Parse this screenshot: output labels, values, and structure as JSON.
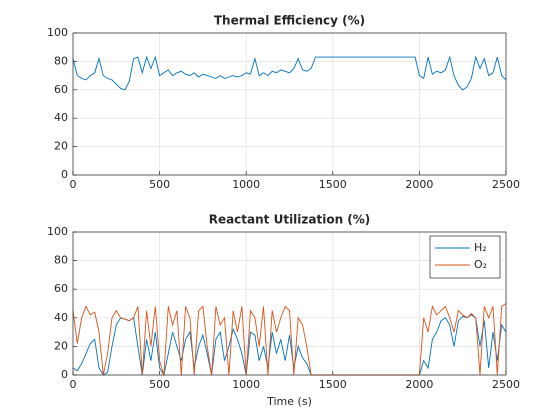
{
  "chart_data": [
    {
      "type": "line",
      "title": "Thermal Efficiency (%)",
      "x": [
        0,
        25,
        50,
        75,
        100,
        125,
        150,
        175,
        200,
        225,
        250,
        275,
        300,
        325,
        350,
        375,
        400,
        425,
        450,
        475,
        500,
        525,
        550,
        575,
        600,
        625,
        650,
        675,
        700,
        725,
        750,
        775,
        800,
        825,
        850,
        875,
        900,
        925,
        950,
        975,
        1000,
        1025,
        1050,
        1075,
        1100,
        1125,
        1150,
        1175,
        1200,
        1225,
        1250,
        1275,
        1300,
        1325,
        1350,
        1375,
        1400,
        1425,
        1450,
        1475,
        1500,
        1525,
        1550,
        1575,
        1600,
        1625,
        1650,
        1675,
        1700,
        1725,
        1750,
        1775,
        1800,
        1825,
        1850,
        1875,
        1900,
        1925,
        1950,
        1975,
        2000,
        2025,
        2050,
        2075,
        2100,
        2125,
        2150,
        2175,
        2200,
        2225,
        2250,
        2275,
        2300,
        2325,
        2350,
        2375,
        2400,
        2425,
        2450,
        2475,
        2500
      ],
      "series": [
        {
          "color": "#0072bd",
          "values": [
            82,
            70,
            68,
            67,
            70,
            72,
            82,
            70,
            68,
            67,
            64,
            61,
            60,
            66,
            82,
            83,
            72,
            83,
            75,
            83,
            70,
            72,
            74,
            70,
            72,
            73,
            71,
            70,
            72,
            69,
            71,
            70,
            69,
            68,
            70,
            68,
            69,
            70,
            69,
            70,
            72,
            71,
            82,
            70,
            72,
            70,
            73,
            72,
            74,
            73,
            72,
            75,
            82,
            74,
            73,
            75,
            83,
            83,
            83,
            83,
            83,
            83,
            83,
            83,
            83,
            83,
            83,
            83,
            83,
            83,
            83,
            83,
            83,
            83,
            83,
            83,
            83,
            83,
            83,
            83,
            70,
            68,
            83,
            71,
            73,
            72,
            74,
            83,
            70,
            63,
            60,
            62,
            68,
            83,
            75,
            82,
            70,
            72,
            83,
            70,
            67
          ]
        }
      ],
      "xlim": [
        0,
        2500
      ],
      "xticks": [
        0,
        500,
        1000,
        1500,
        2000,
        2500
      ],
      "ylim": [
        0,
        100
      ],
      "yticks": [
        0,
        20,
        40,
        60,
        80,
        100
      ],
      "grid": true
    },
    {
      "type": "line",
      "title": "Reactant Utilization (%)",
      "xlabel": "Time (s)",
      "x": [
        0,
        25,
        50,
        75,
        100,
        125,
        150,
        175,
        200,
        225,
        250,
        275,
        300,
        325,
        350,
        375,
        400,
        425,
        450,
        475,
        500,
        525,
        550,
        575,
        600,
        625,
        650,
        675,
        700,
        725,
        750,
        775,
        800,
        825,
        850,
        875,
        900,
        925,
        950,
        975,
        1000,
        1025,
        1050,
        1075,
        1100,
        1125,
        1150,
        1175,
        1200,
        1225,
        1250,
        1275,
        1300,
        1325,
        1350,
        1375,
        1400,
        1425,
        1450,
        1475,
        1500,
        1525,
        1550,
        1575,
        1600,
        1625,
        1650,
        1675,
        1700,
        1725,
        1750,
        1775,
        1800,
        1825,
        1850,
        1875,
        1900,
        1925,
        1950,
        1975,
        2000,
        2025,
        2050,
        2075,
        2100,
        2125,
        2150,
        2175,
        2200,
        2225,
        2250,
        2275,
        2300,
        2325,
        2350,
        2375,
        2400,
        2425,
        2450,
        2475,
        2500
      ],
      "series": [
        {
          "name": "H₂",
          "color": "#0072bd",
          "values": [
            5,
            3,
            8,
            15,
            22,
            25,
            5,
            0,
            2,
            20,
            35,
            40,
            39,
            38,
            40,
            20,
            0,
            25,
            10,
            30,
            5,
            0,
            15,
            30,
            20,
            10,
            25,
            30,
            5,
            20,
            28,
            15,
            0,
            25,
            30,
            10,
            20,
            32,
            25,
            15,
            0,
            30,
            28,
            10,
            20,
            5,
            30,
            15,
            25,
            10,
            28,
            5,
            20,
            12,
            8,
            0,
            0,
            0,
            0,
            0,
            0,
            0,
            0,
            0,
            0,
            0,
            0,
            0,
            0,
            0,
            0,
            0,
            0,
            0,
            0,
            0,
            0,
            0,
            0,
            0,
            0,
            10,
            5,
            25,
            30,
            38,
            40,
            35,
            20,
            38,
            41,
            40,
            42,
            40,
            20,
            38,
            5,
            30,
            10,
            35,
            30
          ]
        },
        {
          "name": "O₂",
          "color": "#d95319",
          "values": [
            45,
            22,
            40,
            48,
            42,
            44,
            30,
            0,
            15,
            40,
            45,
            40,
            39,
            38,
            40,
            48,
            0,
            45,
            20,
            48,
            10,
            0,
            48,
            35,
            45,
            0,
            48,
            40,
            0,
            45,
            48,
            20,
            0,
            48,
            35,
            40,
            0,
            45,
            30,
            48,
            0,
            45,
            40,
            20,
            48,
            0,
            45,
            30,
            40,
            48,
            45,
            0,
            40,
            35,
            20,
            0,
            0,
            0,
            0,
            0,
            0,
            0,
            0,
            0,
            0,
            0,
            0,
            0,
            0,
            0,
            0,
            0,
            0,
            0,
            0,
            0,
            0,
            0,
            0,
            0,
            0,
            40,
            30,
            48,
            42,
            45,
            48,
            40,
            30,
            45,
            42,
            40,
            43,
            40,
            0,
            48,
            40,
            48,
            0,
            48,
            50
          ]
        }
      ],
      "xlim": [
        0,
        2500
      ],
      "xticks": [
        0,
        500,
        1000,
        1500,
        2000,
        2500
      ],
      "ylim": [
        0,
        100
      ],
      "yticks": [
        0,
        20,
        40,
        60,
        80,
        100
      ],
      "grid": true,
      "legend": "northeast"
    }
  ]
}
